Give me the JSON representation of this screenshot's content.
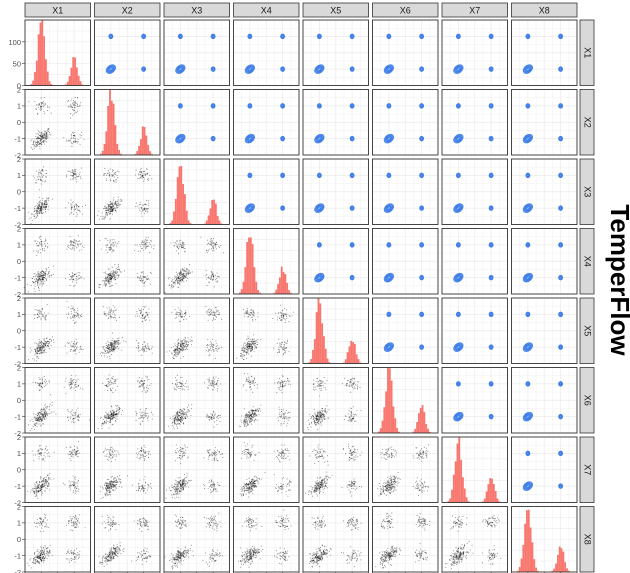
{
  "figure": {
    "side_title": "TemperFlow",
    "colors": {
      "strip_bg": "#d9d9d9",
      "panel_border": "#333333",
      "grid": "#ebebeb",
      "hist": "#f8766d",
      "contour": "#3d7de8",
      "scatter": "#000000",
      "text": "#4d4d4d"
    }
  },
  "chart_data": {
    "type": "pairs-matrix",
    "variables": [
      "X1",
      "X2",
      "X3",
      "X4",
      "X5",
      "X6",
      "X7",
      "X8"
    ],
    "diagonal": {
      "type": "histogram",
      "y_ticks": [
        0,
        50,
        100
      ],
      "ylim": [
        0,
        150
      ],
      "bin_edges_approx": [
        -1.7,
        1.7
      ],
      "modes": [
        -1,
        1
      ],
      "left_mode_peak_count": 140,
      "right_mode_peak_count": 60
    },
    "lower_triangle": {
      "type": "scatter",
      "description_clusters": [
        {
          "x": -1,
          "y": -1,
          "density": "high"
        },
        {
          "x": -1,
          "y": 1,
          "density": "low"
        },
        {
          "x": 1,
          "y": -1,
          "density": "low"
        },
        {
          "x": 1,
          "y": 1,
          "density": "low"
        }
      ]
    },
    "upper_triangle": {
      "type": "density-contour",
      "centers": [
        [
          -1,
          -1
        ],
        [
          -1,
          1
        ],
        [
          1,
          -1
        ],
        [
          1,
          1
        ]
      ]
    },
    "x_ticks": [
      "-2",
      "-1",
      "0",
      "1",
      "2"
    ],
    "y_ticks": [
      "-2",
      "-1",
      "0",
      "1",
      "2"
    ],
    "xlim": [
      -2,
      2
    ],
    "ylim": [
      -2,
      2
    ],
    "grid": true
  }
}
